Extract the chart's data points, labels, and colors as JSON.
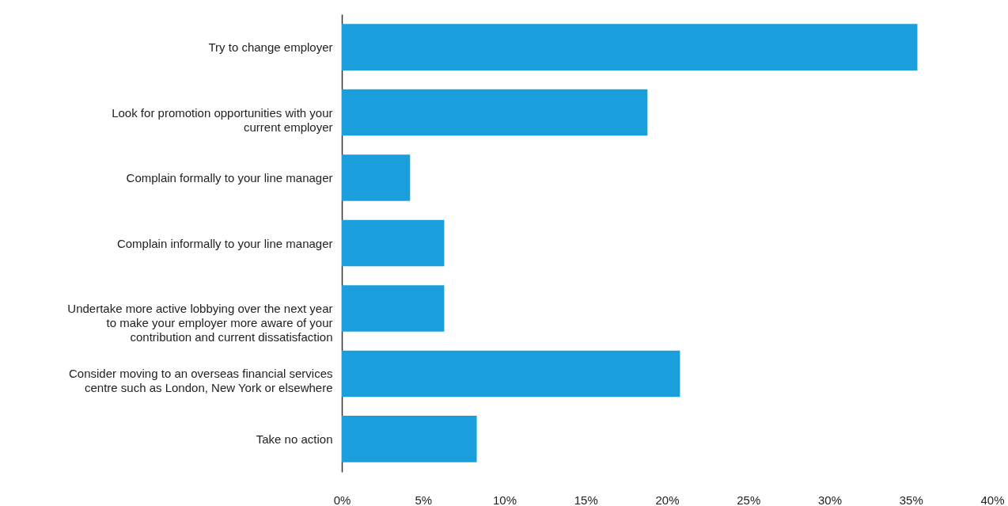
{
  "chart_data": {
    "type": "bar",
    "orientation": "horizontal",
    "categories": [
      "Try to change employer",
      "Look for promotion opportunities with your\ncurrent employer",
      "Complain formally to your line manager",
      "Complain informally to your line manager",
      "Undertake more active lobbying over the next year\nto make your employer more aware of your\ncontribution and current dissatisfaction",
      "Consider moving to an overseas financial services\ncentre such as London, New York or elsewhere",
      "Take no action"
    ],
    "values": [
      35.4,
      18.8,
      4.2,
      6.3,
      6.3,
      20.8,
      8.3
    ],
    "color": "#1a9fdc",
    "xlim": [
      0,
      40
    ],
    "xticks": [
      {
        "value": 0,
        "label": "0%"
      },
      {
        "value": 5,
        "label": "5%"
      },
      {
        "value": 10,
        "label": "10%"
      },
      {
        "value": 15,
        "label": "15%"
      },
      {
        "value": 20,
        "label": "20%"
      },
      {
        "value": 25,
        "label": "25%"
      },
      {
        "value": 30,
        "label": "30%"
      },
      {
        "value": 35,
        "label": "35%"
      },
      {
        "value": 40,
        "label": "40%"
      }
    ],
    "grid": false
  }
}
